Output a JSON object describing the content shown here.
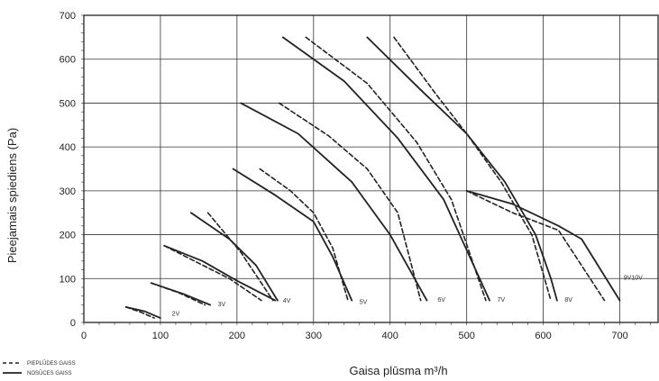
{
  "chart_data": {
    "type": "line",
    "xlabel": "Gaisa plūsma m³/h",
    "ylabel": "Pieejamais spiediens (Pa)",
    "xlim": [
      0,
      750
    ],
    "ylim": [
      0,
      700
    ],
    "x_ticks": [
      0,
      100,
      200,
      300,
      400,
      500,
      600,
      700
    ],
    "y_ticks": [
      0,
      100,
      200,
      300,
      400,
      500,
      600,
      700
    ],
    "grid": true,
    "legend": {
      "placement": "bottom-left",
      "entries": [
        {
          "label": "PIEPLŪDES GAISS",
          "style": "dashed"
        },
        {
          "label": "NOSŪCES GAISS",
          "style": "solid"
        }
      ]
    },
    "curve_labels": [
      {
        "text": "2V",
        "x": 115,
        "y": 15
      },
      {
        "text": "3V",
        "x": 175,
        "y": 37
      },
      {
        "text": "4V",
        "x": 260,
        "y": 45
      },
      {
        "text": "5V",
        "x": 360,
        "y": 42
      },
      {
        "text": "6V",
        "x": 462,
        "y": 47
      },
      {
        "text": "7V",
        "x": 540,
        "y": 47
      },
      {
        "text": "8V",
        "x": 628,
        "y": 47
      },
      {
        "text": "9V10V",
        "x": 705,
        "y": 97
      }
    ],
    "series": [
      {
        "curve": "2V",
        "style": "dashed",
        "x": [
          55,
          75,
          92
        ],
        "y": [
          35,
          23,
          10
        ]
      },
      {
        "curve": "2V",
        "style": "solid",
        "x": [
          55,
          80,
          100
        ],
        "y": [
          35,
          25,
          10
        ]
      },
      {
        "curve": "3V",
        "style": "dashed",
        "x": [
          88,
          125,
          158
        ],
        "y": [
          90,
          67,
          40
        ]
      },
      {
        "curve": "3V",
        "style": "solid",
        "x": [
          88,
          130,
          165
        ],
        "y": [
          90,
          65,
          40
        ]
      },
      {
        "curve": "4V",
        "style": "dashed",
        "x": [
          162,
          205,
          247
        ],
        "y": [
          250,
          160,
          50
        ]
      },
      {
        "curve": "4V",
        "style": "solid",
        "x": [
          140,
          190,
          225,
          253
        ],
        "y": [
          250,
          190,
          130,
          50
        ]
      },
      {
        "curve": "4V",
        "style": "dashed",
        "x": [
          105,
          150,
          190,
          232
        ],
        "y": [
          175,
          135,
          100,
          50
        ]
      },
      {
        "curve": "4V",
        "style": "solid",
        "x": [
          105,
          155,
          200,
          250
        ],
        "y": [
          175,
          140,
          95,
          50
        ]
      },
      {
        "curve": "5V",
        "style": "dashed",
        "x": [
          230,
          270,
          300,
          325,
          345
        ],
        "y": [
          350,
          300,
          250,
          170,
          50
        ]
      },
      {
        "curve": "5V",
        "style": "solid",
        "x": [
          195,
          250,
          300,
          325,
          350
        ],
        "y": [
          350,
          290,
          230,
          150,
          50
        ]
      },
      {
        "curve": "6V",
        "style": "dashed",
        "x": [
          255,
          320,
          370,
          410,
          440
        ],
        "y": [
          500,
          425,
          350,
          250,
          50
        ]
      },
      {
        "curve": "6V",
        "style": "solid",
        "x": [
          205,
          280,
          350,
          400,
          448
        ],
        "y": [
          500,
          430,
          320,
          200,
          50
        ]
      },
      {
        "curve": "7V",
        "style": "dashed",
        "x": [
          290,
          370,
          435,
          480,
          525
        ],
        "y": [
          650,
          545,
          410,
          280,
          50
        ]
      },
      {
        "curve": "7V",
        "style": "solid",
        "x": [
          260,
          340,
          410,
          470,
          530
        ],
        "y": [
          650,
          550,
          420,
          280,
          50
        ]
      },
      {
        "curve": "8V",
        "style": "dashed",
        "x": [
          405,
          460,
          500,
          545,
          585,
          610
        ],
        "y": [
          650,
          520,
          430,
          320,
          200,
          50
        ]
      },
      {
        "curve": "8V",
        "style": "solid",
        "x": [
          370,
          440,
          500,
          550,
          590,
          610,
          618
        ],
        "y": [
          650,
          530,
          430,
          320,
          200,
          100,
          50
        ]
      },
      {
        "curve": "9V10V",
        "style": "dashed",
        "x": [
          500,
          560,
          620,
          680
        ],
        "y": [
          300,
          250,
          210,
          50
        ]
      },
      {
        "curve": "9V10V",
        "style": "solid",
        "x": [
          500,
          560,
          620,
          650,
          700
        ],
        "y": [
          300,
          270,
          220,
          190,
          50
        ]
      }
    ]
  }
}
